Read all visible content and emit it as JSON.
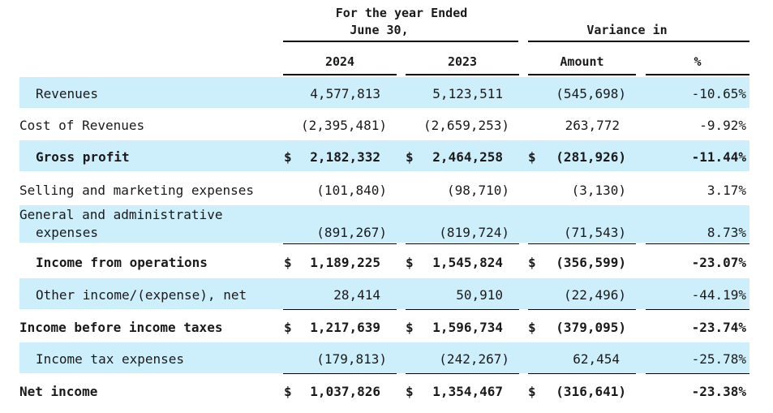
{
  "header": {
    "period_line1": "For the year Ended",
    "period_line2": "June  30,",
    "variance_title": "Variance in",
    "col_2024": "2024",
    "col_2023": "2023",
    "col_amount": "Amount",
    "col_pct": "%"
  },
  "rows": [
    {
      "label": "Revenues",
      "v2024": "4,577,813",
      "v2023": "5,123,511",
      "amount": "(545,698)",
      "pct": "-10.65%"
    },
    {
      "label": "Cost of Revenues",
      "v2024": "(2,395,481)",
      "v2023": "(2,659,253)",
      "amount": "263,772",
      "pct": "-9.92%"
    },
    {
      "label": "Gross profit",
      "v2024": "2,182,332",
      "v2023": "2,464,258",
      "amount": "(281,926)",
      "pct": "-11.44%",
      "currency": "$"
    },
    {
      "label": "Selling and marketing expenses",
      "v2024": "(101,840)",
      "v2023": "(98,710)",
      "amount": "(3,130)",
      "pct": "3.17%"
    },
    {
      "label_line1": "General and administrative",
      "label_line2": "expenses",
      "v2024": "(891,267)",
      "v2023": "(819,724)",
      "amount": "(71,543)",
      "pct": "8.73%"
    },
    {
      "label": "Income from operations",
      "v2024": "1,189,225",
      "v2023": "1,545,824",
      "amount": "(356,599)",
      "pct": "-23.07%",
      "currency": "$"
    },
    {
      "label": "Other income/(expense), net",
      "v2024": "28,414",
      "v2023": "50,910",
      "amount": "(22,496)",
      "pct": "-44.19%"
    },
    {
      "label": "Income before income taxes",
      "v2024": "1,217,639",
      "v2023": "1,596,734",
      "amount": "(379,095)",
      "pct": "-23.74%",
      "currency": "$"
    },
    {
      "label": "Income tax expenses",
      "v2024": "(179,813)",
      "v2023": "(242,267)",
      "amount": "62,454",
      "pct": "-25.78%"
    },
    {
      "label": "Net income",
      "v2024": "1,037,826",
      "v2023": "1,354,467",
      "amount": "(316,641)",
      "pct": "-23.38%",
      "currency": "$"
    }
  ],
  "colors": {
    "row_shade": "#cdeefb",
    "rule": "#000000"
  }
}
